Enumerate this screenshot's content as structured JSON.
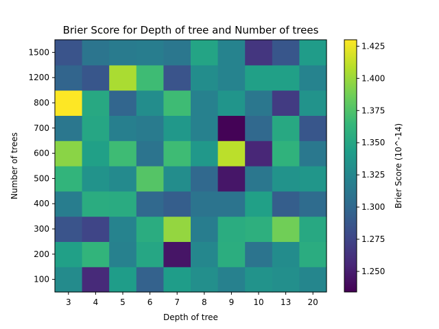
{
  "chart_data": {
    "type": "heatmap",
    "title": "Brier Score for Depth of tree and Number of trees",
    "xlabel": "Depth of tree",
    "ylabel": "Number of trees",
    "x_categories": [
      "3",
      "4",
      "5",
      "6",
      "7",
      "8",
      "9",
      "10",
      "13",
      "20"
    ],
    "y_categories": [
      "100",
      "200",
      "300",
      "400",
      "500",
      "600",
      "700",
      "800",
      "1200",
      "1500"
    ],
    "values": [
      [
        1.328,
        1.257,
        1.342,
        1.295,
        1.342,
        1.331,
        1.32,
        1.334,
        1.331,
        1.324
      ],
      [
        1.345,
        1.362,
        1.32,
        1.35,
        1.245,
        1.325,
        1.356,
        1.309,
        1.329,
        1.355
      ],
      [
        1.285,
        1.275,
        1.322,
        1.355,
        1.398,
        1.317,
        1.355,
        1.358,
        1.387,
        1.352
      ],
      [
        1.317,
        1.355,
        1.354,
        1.3,
        1.292,
        1.309,
        1.309,
        1.345,
        1.292,
        1.303
      ],
      [
        1.362,
        1.334,
        1.327,
        1.377,
        1.33,
        1.3,
        1.246,
        1.312,
        1.334,
        1.337
      ],
      [
        1.395,
        1.345,
        1.368,
        1.309,
        1.368,
        1.338,
        1.41,
        1.255,
        1.36,
        1.313
      ],
      [
        1.312,
        1.35,
        1.319,
        1.315,
        1.338,
        1.32,
        1.235,
        1.3,
        1.352,
        1.287
      ],
      [
        1.43,
        1.352,
        1.298,
        1.33,
        1.368,
        1.32,
        1.336,
        1.312,
        1.268,
        1.334
      ],
      [
        1.297,
        1.287,
        1.405,
        1.368,
        1.285,
        1.33,
        1.322,
        1.345,
        1.345,
        1.322
      ],
      [
        1.285,
        1.31,
        1.315,
        1.317,
        1.312,
        1.348,
        1.322,
        1.265,
        1.287,
        1.341
      ]
    ],
    "colorbar": {
      "label": "Brier Score (10^-14)",
      "range": [
        1.234,
        1.43
      ],
      "ticks": [
        "1.250",
        "1.275",
        "1.300",
        "1.325",
        "1.350",
        "1.375",
        "1.400",
        "1.425"
      ],
      "tick_values": [
        1.25,
        1.275,
        1.3,
        1.325,
        1.35,
        1.375,
        1.4,
        1.425
      ],
      "colormap": [
        "#440154",
        "#482878",
        "#3e4989",
        "#31688e",
        "#26828e",
        "#1f9e89",
        "#35b779",
        "#6ece58",
        "#b5de2b",
        "#fde725"
      ]
    },
    "grid": false
  }
}
